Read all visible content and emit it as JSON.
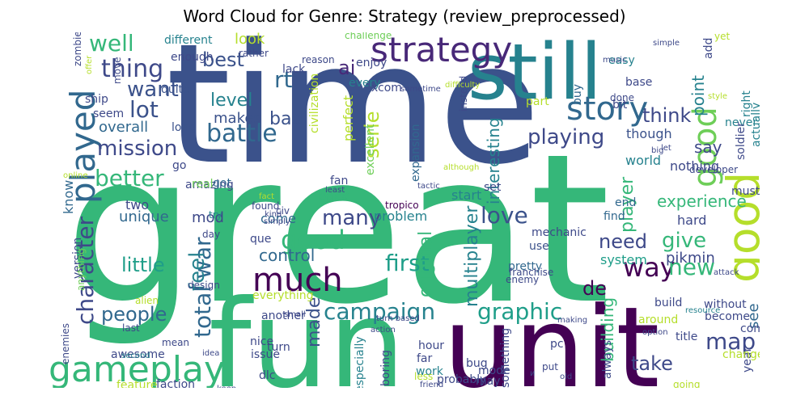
{
  "chart_data": {
    "type": "wordcloud",
    "title": "Word Cloud for Genre: Strategy (review_preprocessed)",
    "words": [
      {
        "text": "great",
        "color": "#35b779"
      },
      {
        "text": "time",
        "color": "#3b528b"
      },
      {
        "text": "fun",
        "color": "#35b779"
      },
      {
        "text": "unit",
        "color": "#440154"
      },
      {
        "text": "still",
        "color": "#26828e"
      },
      {
        "text": "strategy",
        "color": "#482878"
      },
      {
        "text": "gameplay",
        "color": "#35b779"
      },
      {
        "text": "good",
        "color": "#b5de2b"
      },
      {
        "text": "much",
        "color": "#440154"
      },
      {
        "text": "story",
        "color": "#31688e"
      },
      {
        "text": "played",
        "color": "#31688e"
      },
      {
        "text": "campaign",
        "color": "#26828e"
      },
      {
        "text": "good",
        "color": "#6ece58"
      },
      {
        "text": "graphic",
        "color": "#1f9e89"
      },
      {
        "text": "battle",
        "color": "#31688e"
      },
      {
        "text": "character",
        "color": "#3e4989"
      },
      {
        "text": "mission",
        "color": "#3e4989"
      },
      {
        "text": "better",
        "color": "#35b779"
      },
      {
        "text": "many",
        "color": "#3e4989"
      },
      {
        "text": "good",
        "color": "#35b779"
      },
      {
        "text": "total war",
        "color": "#31688e"
      },
      {
        "text": "first",
        "color": "#1f9e89"
      },
      {
        "text": "love",
        "color": "#3b528b"
      },
      {
        "text": "way",
        "color": "#440154"
      },
      {
        "text": "map",
        "color": "#3e4989"
      },
      {
        "text": "new",
        "color": "#35b779"
      },
      {
        "text": "lot",
        "color": "#3b528b"
      },
      {
        "text": "playing",
        "color": "#3e4989"
      },
      {
        "text": "thing",
        "color": "#3e4989"
      },
      {
        "text": "best",
        "color": "#3b528b"
      },
      {
        "text": "well",
        "color": "#35b779"
      },
      {
        "text": "rt",
        "color": "#31688e"
      },
      {
        "text": "ai",
        "color": "#482878"
      },
      {
        "text": "want",
        "color": "#3b528b"
      },
      {
        "text": "feel",
        "color": "#26828e"
      },
      {
        "text": "need",
        "color": "#3e4989"
      },
      {
        "text": "give",
        "color": "#35b779"
      },
      {
        "text": "take",
        "color": "#3e4989"
      },
      {
        "text": "de",
        "color": "#440154"
      },
      {
        "text": "made",
        "color": "#3b528b"
      },
      {
        "text": "little",
        "color": "#1f9e89"
      },
      {
        "text": "people",
        "color": "#31688e"
      },
      {
        "text": "think",
        "color": "#3e4989"
      },
      {
        "text": "bad",
        "color": "#3b528b"
      },
      {
        "text": "level",
        "color": "#26828e"
      },
      {
        "text": "serie",
        "color": "#b5de2b"
      },
      {
        "text": "player",
        "color": "#35b779"
      },
      {
        "text": "multiplayer",
        "color": "#26828e"
      },
      {
        "text": "interesting",
        "color": "#26828e"
      },
      {
        "text": "original",
        "color": "#35b779"
      },
      {
        "text": "experience",
        "color": "#35b779"
      },
      {
        "text": "control",
        "color": "#31688e"
      },
      {
        "text": "building",
        "color": "#35b779"
      },
      {
        "text": "see",
        "color": "#31688e"
      },
      {
        "text": "say",
        "color": "#3e4989"
      },
      {
        "text": "overall",
        "color": "#31688e"
      },
      {
        "text": "look",
        "color": "#b5de2b"
      },
      {
        "text": "makes",
        "color": "#3b528b"
      },
      {
        "text": "pikmin",
        "color": "#3e4989"
      },
      {
        "text": "point",
        "color": "#26828e"
      },
      {
        "text": "know",
        "color": "#31688e"
      },
      {
        "text": "unique",
        "color": "#31688e"
      },
      {
        "text": "everything",
        "color": "#b5de2b"
      },
      {
        "text": "problem",
        "color": "#26828e"
      },
      {
        "text": "mod",
        "color": "#3e4989"
      },
      {
        "text": "two",
        "color": "#3e4989"
      },
      {
        "text": "back",
        "color": "#35b779"
      },
      {
        "text": "come",
        "color": "#31688e"
      },
      {
        "text": "que",
        "color": "#3e4989"
      },
      {
        "text": "hard",
        "color": "#3e4989"
      },
      {
        "text": "find",
        "color": "#31688e"
      },
      {
        "text": "end",
        "color": "#31688e"
      },
      {
        "text": "system",
        "color": "#1f9e89"
      },
      {
        "text": "pretty",
        "color": "#31688e"
      },
      {
        "text": "use",
        "color": "#3b528b"
      },
      {
        "text": "mechanic",
        "color": "#3e4989"
      },
      {
        "text": "start",
        "color": "#26828e"
      },
      {
        "text": "fan",
        "color": "#3e4989"
      },
      {
        "text": "tropico",
        "color": "#440154"
      },
      {
        "text": "nothing",
        "color": "#3e4989"
      },
      {
        "text": "world",
        "color": "#26828e"
      },
      {
        "text": "though",
        "color": "#3b528b"
      },
      {
        "text": "seem",
        "color": "#3e4989"
      },
      {
        "text": "ship",
        "color": "#3e4989"
      },
      {
        "text": "quite",
        "color": "#3b528b"
      },
      {
        "text": "amazing",
        "color": "#3e4989"
      },
      {
        "text": "got",
        "color": "#31688e"
      },
      {
        "text": "go",
        "color": "#3e4989"
      },
      {
        "text": "real",
        "color": "#6ece58"
      },
      {
        "text": "long",
        "color": "#3b528b"
      },
      {
        "text": "different",
        "color": "#26828e"
      },
      {
        "text": "enough",
        "color": "#3e4989"
      },
      {
        "text": "lack",
        "color": "#3e4989"
      },
      {
        "text": "rather",
        "color": "#3e4989"
      },
      {
        "text": "enjoy",
        "color": "#3e4989"
      },
      {
        "text": "every",
        "color": "#26828e"
      },
      {
        "text": "xcom",
        "color": "#3e4989"
      },
      {
        "text": "perfect",
        "color": "#b5de2b"
      },
      {
        "text": "excellent",
        "color": "#6ece58"
      },
      {
        "text": "expansion",
        "color": "#31688e"
      },
      {
        "text": "part",
        "color": "#b5de2b"
      },
      {
        "text": "easy",
        "color": "#26828e"
      },
      {
        "text": "base",
        "color": "#3e4989"
      },
      {
        "text": "music",
        "color": "#3e4989"
      },
      {
        "text": "bit",
        "color": "#3e4989"
      },
      {
        "text": "done",
        "color": "#3e4989"
      },
      {
        "text": "buy",
        "color": "#31688e"
      },
      {
        "text": "add",
        "color": "#3e4989"
      },
      {
        "text": "yet",
        "color": "#b5de2b"
      },
      {
        "text": "style",
        "color": "#b5de2b"
      },
      {
        "text": "never",
        "color": "#26828e"
      },
      {
        "text": "actually",
        "color": "#26828e"
      },
      {
        "text": "right",
        "color": "#26828e"
      },
      {
        "text": "must",
        "color": "#3e4989"
      },
      {
        "text": "soldier",
        "color": "#3e4989"
      },
      {
        "text": "version",
        "color": "#3e4989"
      },
      {
        "text": "day",
        "color": "#3e4989"
      },
      {
        "text": "try",
        "color": "#26828e"
      },
      {
        "text": "anything",
        "color": "#6ece58"
      },
      {
        "text": "design",
        "color": "#3e4989"
      },
      {
        "text": "enemies",
        "color": "#3e4989"
      },
      {
        "text": "awesome",
        "color": "#3e4989"
      },
      {
        "text": "second",
        "color": "#26828e"
      },
      {
        "text": "mean",
        "color": "#3e4989"
      },
      {
        "text": "feature",
        "color": "#b5de2b"
      },
      {
        "text": "faction",
        "color": "#3e4989"
      },
      {
        "text": "dlc",
        "color": "#3e4989"
      },
      {
        "text": "issue",
        "color": "#3e4989"
      },
      {
        "text": "nice",
        "color": "#3e4989"
      },
      {
        "text": "turn",
        "color": "#3e4989"
      },
      {
        "text": "another",
        "color": "#3e4989"
      },
      {
        "text": "especially",
        "color": "#26828e"
      },
      {
        "text": "boring",
        "color": "#3e4989"
      },
      {
        "text": "hour",
        "color": "#3e4989"
      },
      {
        "text": "far",
        "color": "#3e4989"
      },
      {
        "text": "work",
        "color": "#26828e"
      },
      {
        "text": "less",
        "color": "#b5de2b"
      },
      {
        "text": "friend",
        "color": "#3e4989"
      },
      {
        "text": "bug",
        "color": "#3e4989"
      },
      {
        "text": "may",
        "color": "#3e4989"
      },
      {
        "text": "mode",
        "color": "#3e4989"
      },
      {
        "text": "something",
        "color": "#3e4989"
      },
      {
        "text": "pc",
        "color": "#3e4989"
      },
      {
        "text": "put",
        "color": "#3e4989"
      },
      {
        "text": "old",
        "color": "#3e4989"
      },
      {
        "text": "always",
        "color": "#3e4989"
      },
      {
        "text": "title",
        "color": "#3e4989"
      },
      {
        "text": "around",
        "color": "#b5de2b"
      },
      {
        "text": "build",
        "color": "#3e4989"
      },
      {
        "text": "without",
        "color": "#3e4989"
      },
      {
        "text": "become",
        "color": "#3e4989"
      },
      {
        "text": "combat",
        "color": "#3e4989"
      },
      {
        "text": "year",
        "color": "#3e4989"
      },
      {
        "text": "change",
        "color": "#b5de2b"
      },
      {
        "text": "enemy",
        "color": "#3e4989"
      },
      {
        "text": "franchise",
        "color": "#3e4989"
      },
      {
        "text": "probably",
        "color": "#3e4989"
      },
      {
        "text": "turn based",
        "color": "#3e4989"
      },
      {
        "text": "action",
        "color": "#3e4989"
      },
      {
        "text": "making",
        "color": "#3e4989"
      },
      {
        "text": "resource",
        "color": "#26828e"
      },
      {
        "text": "attack",
        "color": "#3e4989"
      },
      {
        "text": "tactic",
        "color": "#3e4989"
      },
      {
        "text": "although",
        "color": "#b5de2b"
      },
      {
        "text": "set",
        "color": "#3e4989"
      },
      {
        "text": "found",
        "color": "#3e4989"
      },
      {
        "text": "kind",
        "color": "#3e4989"
      },
      {
        "text": "civ",
        "color": "#3e4989"
      },
      {
        "text": "least",
        "color": "#3e4989"
      },
      {
        "text": "fact",
        "color": "#b5de2b"
      },
      {
        "text": "simply",
        "color": "#3e4989"
      },
      {
        "text": "civilization",
        "color": "#b5de2b"
      },
      {
        "text": "instead",
        "color": "#3e4989"
      },
      {
        "text": "move",
        "color": "#3e4989"
      },
      {
        "text": "offer",
        "color": "#b5de2b"
      },
      {
        "text": "zombie",
        "color": "#3e4989"
      },
      {
        "text": "challenge",
        "color": "#6ece58"
      },
      {
        "text": "reason",
        "color": "#3e4989"
      },
      {
        "text": "sometime",
        "color": "#3e4989"
      },
      {
        "text": "difficulty",
        "color": "#b5de2b"
      },
      {
        "text": "simple",
        "color": "#3e4989"
      },
      {
        "text": "developer",
        "color": "#3e4989"
      },
      {
        "text": "online",
        "color": "#b5de2b"
      },
      {
        "text": "alien",
        "color": "#b5de2b"
      },
      {
        "text": "last",
        "color": "#3e4989"
      },
      {
        "text": "going",
        "color": "#b5de2b"
      },
      {
        "text": "option",
        "color": "#3e4989"
      },
      {
        "text": "keep",
        "color": "#3e4989"
      },
      {
        "text": "idea",
        "color": "#3e4989"
      },
      {
        "text": "small",
        "color": "#3e4989"
      },
      {
        "text": "и",
        "color": "#3e4989"
      },
      {
        "text": "let",
        "color": "#3e4989"
      },
      {
        "text": "big",
        "color": "#3e4989"
      },
      {
        "text": "en",
        "color": "#3e4989"
      }
    ]
  }
}
